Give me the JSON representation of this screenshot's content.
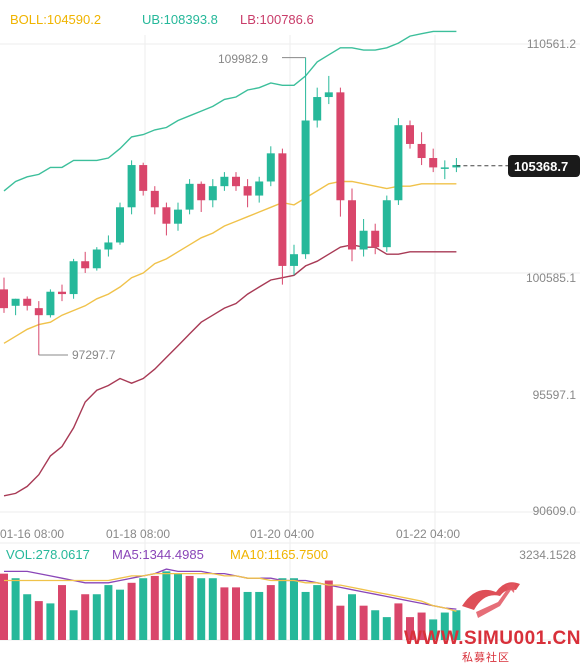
{
  "header": {
    "boll": "BOLL:104590.2",
    "ub": "UB:108393.8",
    "lb": "LB:100786.6"
  },
  "price_axis": {
    "labels": [
      "110561.2",
      "100585.1",
      "95597.1",
      "90609.0"
    ],
    "label_values": [
      110561.2,
      100585.1,
      95597.1,
      90609.0
    ]
  },
  "time_axis": {
    "labels": [
      "01-16 08:00",
      "01-18 08:00",
      "01-20 04:00",
      "01-22 04:00"
    ],
    "label_index": [
      0,
      10,
      23,
      34
    ]
  },
  "current_price": {
    "label": "105368.7",
    "value": 105368.7
  },
  "annotations": {
    "high_label": "109982.9",
    "high_value": 109982.9,
    "high_index": 26,
    "low_label": "97297.7",
    "low_value": 97297.7,
    "low_index": 3
  },
  "volume": {
    "vol": "VOL:278.0617",
    "ma5": "MA5:1344.4985",
    "ma10": "MA10:1165.7500",
    "max_label": "3234.1528",
    "max_value": 3234.1528
  },
  "watermark": {
    "text": "WWW.SIMU001.CN",
    "subtext": "私募社区"
  },
  "colors": {
    "up": "#26b89a",
    "down": "#d9466b",
    "ub_line": "#3cbf9b",
    "mid_line": "#f0c24a",
    "lb_line": "#a83a55",
    "ma5": "#8a46b8",
    "ma10": "#f0c24a",
    "boll_text": "#f0b400",
    "ub_text": "#26b89a",
    "lb_text": "#c93d6a",
    "watermark": "#d8303a"
  },
  "chart_data": {
    "type": "candlestick",
    "y_range": [
      90000,
      111000
    ],
    "candles": [
      {
        "o": 100100,
        "h": 100600,
        "l": 99100,
        "c": 99300
      },
      {
        "o": 99400,
        "h": 99700,
        "l": 99000,
        "c": 99700
      },
      {
        "o": 99700,
        "h": 99800,
        "l": 99200,
        "c": 99400
      },
      {
        "o": 99300,
        "h": 99600,
        "l": 97300,
        "c": 99000
      },
      {
        "o": 99000,
        "h": 100100,
        "l": 98900,
        "c": 100000
      },
      {
        "o": 100000,
        "h": 100300,
        "l": 99600,
        "c": 99900
      },
      {
        "o": 99900,
        "h": 101400,
        "l": 99700,
        "c": 101300
      },
      {
        "o": 101300,
        "h": 101700,
        "l": 100800,
        "c": 101000
      },
      {
        "o": 101000,
        "h": 101900,
        "l": 100900,
        "c": 101800
      },
      {
        "o": 101800,
        "h": 102400,
        "l": 101500,
        "c": 102100
      },
      {
        "o": 102100,
        "h": 103800,
        "l": 102000,
        "c": 103600
      },
      {
        "o": 103600,
        "h": 105600,
        "l": 103300,
        "c": 105400
      },
      {
        "o": 105400,
        "h": 105500,
        "l": 104100,
        "c": 104300
      },
      {
        "o": 104300,
        "h": 104500,
        "l": 103300,
        "c": 103600
      },
      {
        "o": 103600,
        "h": 103800,
        "l": 102400,
        "c": 102900
      },
      {
        "o": 102900,
        "h": 103800,
        "l": 102600,
        "c": 103500
      },
      {
        "o": 103500,
        "h": 104800,
        "l": 103300,
        "c": 104600
      },
      {
        "o": 104600,
        "h": 104700,
        "l": 103400,
        "c": 103900
      },
      {
        "o": 103900,
        "h": 104800,
        "l": 103600,
        "c": 104500
      },
      {
        "o": 104500,
        "h": 105100,
        "l": 104300,
        "c": 104900
      },
      {
        "o": 104900,
        "h": 105100,
        "l": 104300,
        "c": 104500
      },
      {
        "o": 104500,
        "h": 104800,
        "l": 103600,
        "c": 104100
      },
      {
        "o": 104100,
        "h": 104900,
        "l": 103800,
        "c": 104700
      },
      {
        "o": 104700,
        "h": 106200,
        "l": 104500,
        "c": 105900
      },
      {
        "o": 105900,
        "h": 106100,
        "l": 100300,
        "c": 101100
      },
      {
        "o": 101100,
        "h": 102000,
        "l": 100700,
        "c": 101600
      },
      {
        "o": 101600,
        "h": 109983,
        "l": 101400,
        "c": 107300
      },
      {
        "o": 107300,
        "h": 108700,
        "l": 107000,
        "c": 108300
      },
      {
        "o": 108300,
        "h": 109200,
        "l": 108000,
        "c": 108500
      },
      {
        "o": 108500,
        "h": 108700,
        "l": 103200,
        "c": 103900
      },
      {
        "o": 103900,
        "h": 104400,
        "l": 101300,
        "c": 101800
      },
      {
        "o": 101800,
        "h": 103100,
        "l": 101500,
        "c": 102600
      },
      {
        "o": 102600,
        "h": 102900,
        "l": 101600,
        "c": 101900
      },
      {
        "o": 101900,
        "h": 104100,
        "l": 101700,
        "c": 103900
      },
      {
        "o": 103900,
        "h": 107400,
        "l": 103700,
        "c": 107100
      },
      {
        "o": 107100,
        "h": 107300,
        "l": 106100,
        "c": 106300
      },
      {
        "o": 106300,
        "h": 106800,
        "l": 105400,
        "c": 105700
      },
      {
        "o": 105700,
        "h": 106100,
        "l": 105100,
        "c": 105300
      },
      {
        "o": 105300,
        "h": 105600,
        "l": 104800,
        "c": 105300
      },
      {
        "o": 105300,
        "h": 105700,
        "l": 105100,
        "c": 105400
      }
    ],
    "ub": [
      104300,
      104700,
      104900,
      105000,
      105300,
      105300,
      105600,
      105600,
      105600,
      105700,
      106100,
      106600,
      106700,
      106900,
      107000,
      107300,
      107500,
      107700,
      107900,
      108200,
      108300,
      108600,
      108700,
      108900,
      108800,
      108800,
      109200,
      109800,
      110100,
      110400,
      110400,
      110300,
      110300,
      110400,
      110600,
      110900,
      111000,
      111100,
      111100,
      111100
    ],
    "mid": [
      97800,
      98100,
      98400,
      98600,
      98700,
      99000,
      99200,
      99400,
      99700,
      99900,
      100200,
      100600,
      100800,
      101200,
      101400,
      101700,
      102000,
      102300,
      102500,
      102800,
      103000,
      103200,
      103400,
      103600,
      103800,
      103700,
      104000,
      104300,
      104600,
      104700,
      104700,
      104600,
      104500,
      104400,
      104500,
      104500,
      104600,
      104600,
      104600,
      104600
    ],
    "lb": [
      91300,
      91400,
      91700,
      92200,
      93000,
      93400,
      94200,
      95300,
      95800,
      96000,
      96300,
      96100,
      96300,
      96700,
      97200,
      97700,
      98200,
      98700,
      99000,
      99300,
      99500,
      99900,
      100200,
      100500,
      100600,
      100700,
      101100,
      101300,
      101600,
      101900,
      102000,
      101900,
      101900,
      101600,
      101600,
      101700,
      101700,
      101700,
      101700,
      101700
    ],
    "volume": [
      2900,
      2700,
      2000,
      1700,
      1600,
      2400,
      1300,
      2000,
      2000,
      2400,
      2200,
      2500,
      2700,
      2800,
      3000,
      2900,
      2800,
      2700,
      2700,
      2300,
      2300,
      2100,
      2100,
      2400,
      2700,
      2700,
      2100,
      2400,
      2600,
      1500,
      2000,
      1500,
      1300,
      1000,
      1600,
      1000,
      1200,
      900,
      1200,
      1300
    ],
    "volume_up": [
      false,
      true,
      true,
      false,
      true,
      false,
      true,
      false,
      true,
      true,
      true,
      false,
      true,
      false,
      true,
      true,
      false,
      true,
      true,
      false,
      false,
      true,
      true,
      false,
      true,
      true,
      true,
      true,
      false,
      false,
      true,
      false,
      true,
      true,
      false,
      false,
      false,
      true,
      true,
      true
    ],
    "ma5_vol": [
      3000,
      3000,
      3000,
      2900,
      2800,
      2700,
      2600,
      2500,
      2500,
      2500,
      2600,
      2700,
      2800,
      2900,
      3100,
      3000,
      3000,
      3000,
      2900,
      2900,
      2800,
      2700,
      2700,
      2700,
      2600,
      2600,
      2600,
      2500,
      2400,
      2300,
      2200,
      2100,
      2000,
      1900,
      1800,
      1700,
      1600,
      1500,
      1400,
      1350
    ],
    "ma10_vol": [
      2600,
      2600,
      2600,
      2600,
      2600,
      2600,
      2600,
      2600,
      2600,
      2600,
      2700,
      2800,
      2800,
      2900,
      2900,
      2900,
      2900,
      2900,
      2900,
      2800,
      2800,
      2700,
      2700,
      2600,
      2600,
      2600,
      2500,
      2500,
      2400,
      2400,
      2300,
      2200,
      2100,
      2000,
      1900,
      1800,
      1700,
      1500,
      1400,
      1250
    ]
  }
}
